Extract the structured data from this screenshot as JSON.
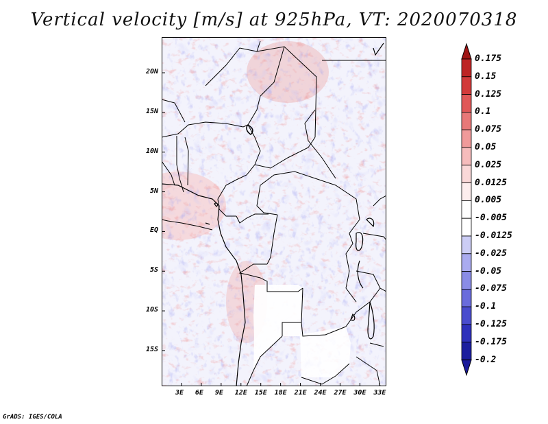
{
  "title": "Vertical velocity [m/s] at 925hPa, VT: 2020070318",
  "footer": "GrADS: IGES/COLA",
  "map": {
    "lat_range": [
      -19.5,
      24.5
    ],
    "lon_range": [
      0,
      34
    ],
    "lat_ticks": [
      {
        "value": 20,
        "label": "20N"
      },
      {
        "value": 15,
        "label": "15N"
      },
      {
        "value": 10,
        "label": "10N"
      },
      {
        "value": 5,
        "label": "5N"
      },
      {
        "value": 0,
        "label": "EQ"
      },
      {
        "value": -5,
        "label": "5S"
      },
      {
        "value": -10,
        "label": "10S"
      },
      {
        "value": -15,
        "label": "15S"
      }
    ],
    "lon_ticks": [
      {
        "value": 3,
        "label": "3E"
      },
      {
        "value": 6,
        "label": "6E"
      },
      {
        "value": 9,
        "label": "9E"
      },
      {
        "value": 12,
        "label": "12E"
      },
      {
        "value": 15,
        "label": "15E"
      },
      {
        "value": 18,
        "label": "18E"
      },
      {
        "value": 21,
        "label": "21E"
      },
      {
        "value": 24,
        "label": "24E"
      },
      {
        "value": 27,
        "label": "27E"
      },
      {
        "value": 30,
        "label": "30E"
      },
      {
        "value": 33,
        "label": "33E"
      }
    ]
  },
  "colorbar": {
    "levels": [
      {
        "label": "0.175",
        "color": "#a51a1a"
      },
      {
        "label": "0.15",
        "color": "#bd2424"
      },
      {
        "label": "0.125",
        "color": "#d23a3a"
      },
      {
        "label": "0.1",
        "color": "#e05858"
      },
      {
        "label": "0.075",
        "color": "#e87878"
      },
      {
        "label": "0.05",
        "color": "#f09a9a"
      },
      {
        "label": "0.025",
        "color": "#f6bcbc"
      },
      {
        "label": "0.0125",
        "color": "#fad8d8"
      },
      {
        "label": "0.005",
        "color": "#fdeeee"
      },
      {
        "label": "-0.005",
        "color": "#ffffff"
      },
      {
        "label": "-0.0125",
        "color": "#e6e6fb"
      },
      {
        "label": "-0.025",
        "color": "#cccdf5"
      },
      {
        "label": "-0.05",
        "color": "#aaabef"
      },
      {
        "label": "-0.075",
        "color": "#8a8ce6"
      },
      {
        "label": "-0.1",
        "color": "#6a6cdc"
      },
      {
        "label": "-0.125",
        "color": "#4a4cce"
      },
      {
        "label": "-0.175",
        "color": "#2e30bb"
      },
      {
        "label": "-0.2",
        "color": "#1c1e9e"
      }
    ],
    "top_arrow_color": "#a01515",
    "bottom_arrow_color": "#1a1a9a"
  },
  "colors": {
    "border_lines": "#000000",
    "blank_region": "#ffffff"
  }
}
